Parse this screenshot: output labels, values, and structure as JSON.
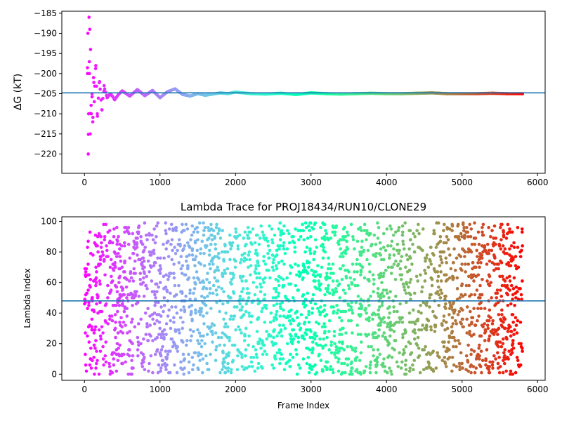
{
  "chart_data": [
    {
      "type": "scatter",
      "title": "",
      "xlabel": "",
      "ylabel": "ΔG (kT)",
      "xlim": [
        -300,
        6100
      ],
      "ylim": [
        -224.8,
        -184.5
      ],
      "xticks": [
        0,
        1000,
        2000,
        3000,
        4000,
        5000,
        6000
      ],
      "xtick_labels": [
        "0",
        "1000",
        "2000",
        "3000",
        "4000",
        "5000",
        "6000"
      ],
      "yticks": [
        -185,
        -190,
        -195,
        -200,
        -205,
        -210,
        -215,
        -220
      ],
      "ytick_labels": [
        "−185",
        "−190",
        "−195",
        "−200",
        "−205",
        "−210",
        "−215",
        "−220"
      ],
      "hline": -204.8,
      "hline_color": "#1f77b4",
      "colormap": "rainbow (red at frame 0 → purple at frame 5800)",
      "series": [
        {
          "x": [
            40,
            45,
            50,
            55,
            60,
            65,
            70,
            75,
            80,
            90,
            100,
            110,
            120,
            130,
            150,
            170,
            200,
            230,
            260,
            300,
            350,
            400,
            450,
            500,
            600,
            700,
            800,
            900,
            1000,
            1100,
            1200,
            1300,
            1400,
            1500,
            1600,
            1700,
            1800,
            1900,
            2000,
            2200,
            2400,
            2600,
            2800,
            3000,
            3200,
            3400,
            3600,
            3800,
            4000,
            4200,
            4400,
            4600,
            4800,
            5000,
            5200,
            5400,
            5600,
            5800
          ],
          "y": [
            -200,
            -190,
            -220,
            -210,
            -186,
            -200,
            -189,
            -215,
            -194,
            -210,
            -205,
            -212,
            -201,
            -207,
            -198,
            -210,
            -202,
            -209,
            -203,
            -206,
            -205,
            -206.5,
            -205.2,
            -204.3,
            -205.6,
            -204,
            -205.5,
            -204.2,
            -206,
            -204.5,
            -203.8,
            -205.2,
            -205.6,
            -205,
            -205.4,
            -205.1,
            -204.8,
            -205,
            -204.6,
            -205,
            -205.1,
            -204.9,
            -205.2,
            -204.8,
            -205,
            -205.1,
            -205,
            -204.9,
            -205,
            -205,
            -204.9,
            -204.8,
            -205,
            -205,
            -205,
            -204.9,
            -205,
            -205
          ]
        }
      ]
    },
    {
      "type": "scatter",
      "title": "Lambda Trace for PROJ18434/RUN10/CLONE29",
      "xlabel": "Frame Index",
      "ylabel": "Lambda Index",
      "xlim": [
        -300,
        6100
      ],
      "ylim": [
        -4,
        103
      ],
      "xticks": [
        0,
        1000,
        2000,
        3000,
        4000,
        5000,
        6000
      ],
      "xtick_labels": [
        "0",
        "1000",
        "2000",
        "3000",
        "4000",
        "5000",
        "6000"
      ],
      "yticks": [
        0,
        20,
        40,
        60,
        80,
        100
      ],
      "ytick_labels": [
        "0",
        "20",
        "40",
        "60",
        "80",
        "100"
      ],
      "hline": 48,
      "hline_color": "#1f77b4",
      "colormap": "rainbow (red at frame 0 → purple at frame 5800)",
      "series": [
        {
          "frame_range": [
            0,
            5800
          ],
          "lambda_range": [
            0,
            99
          ],
          "approx_points": 5800
        }
      ]
    }
  ]
}
